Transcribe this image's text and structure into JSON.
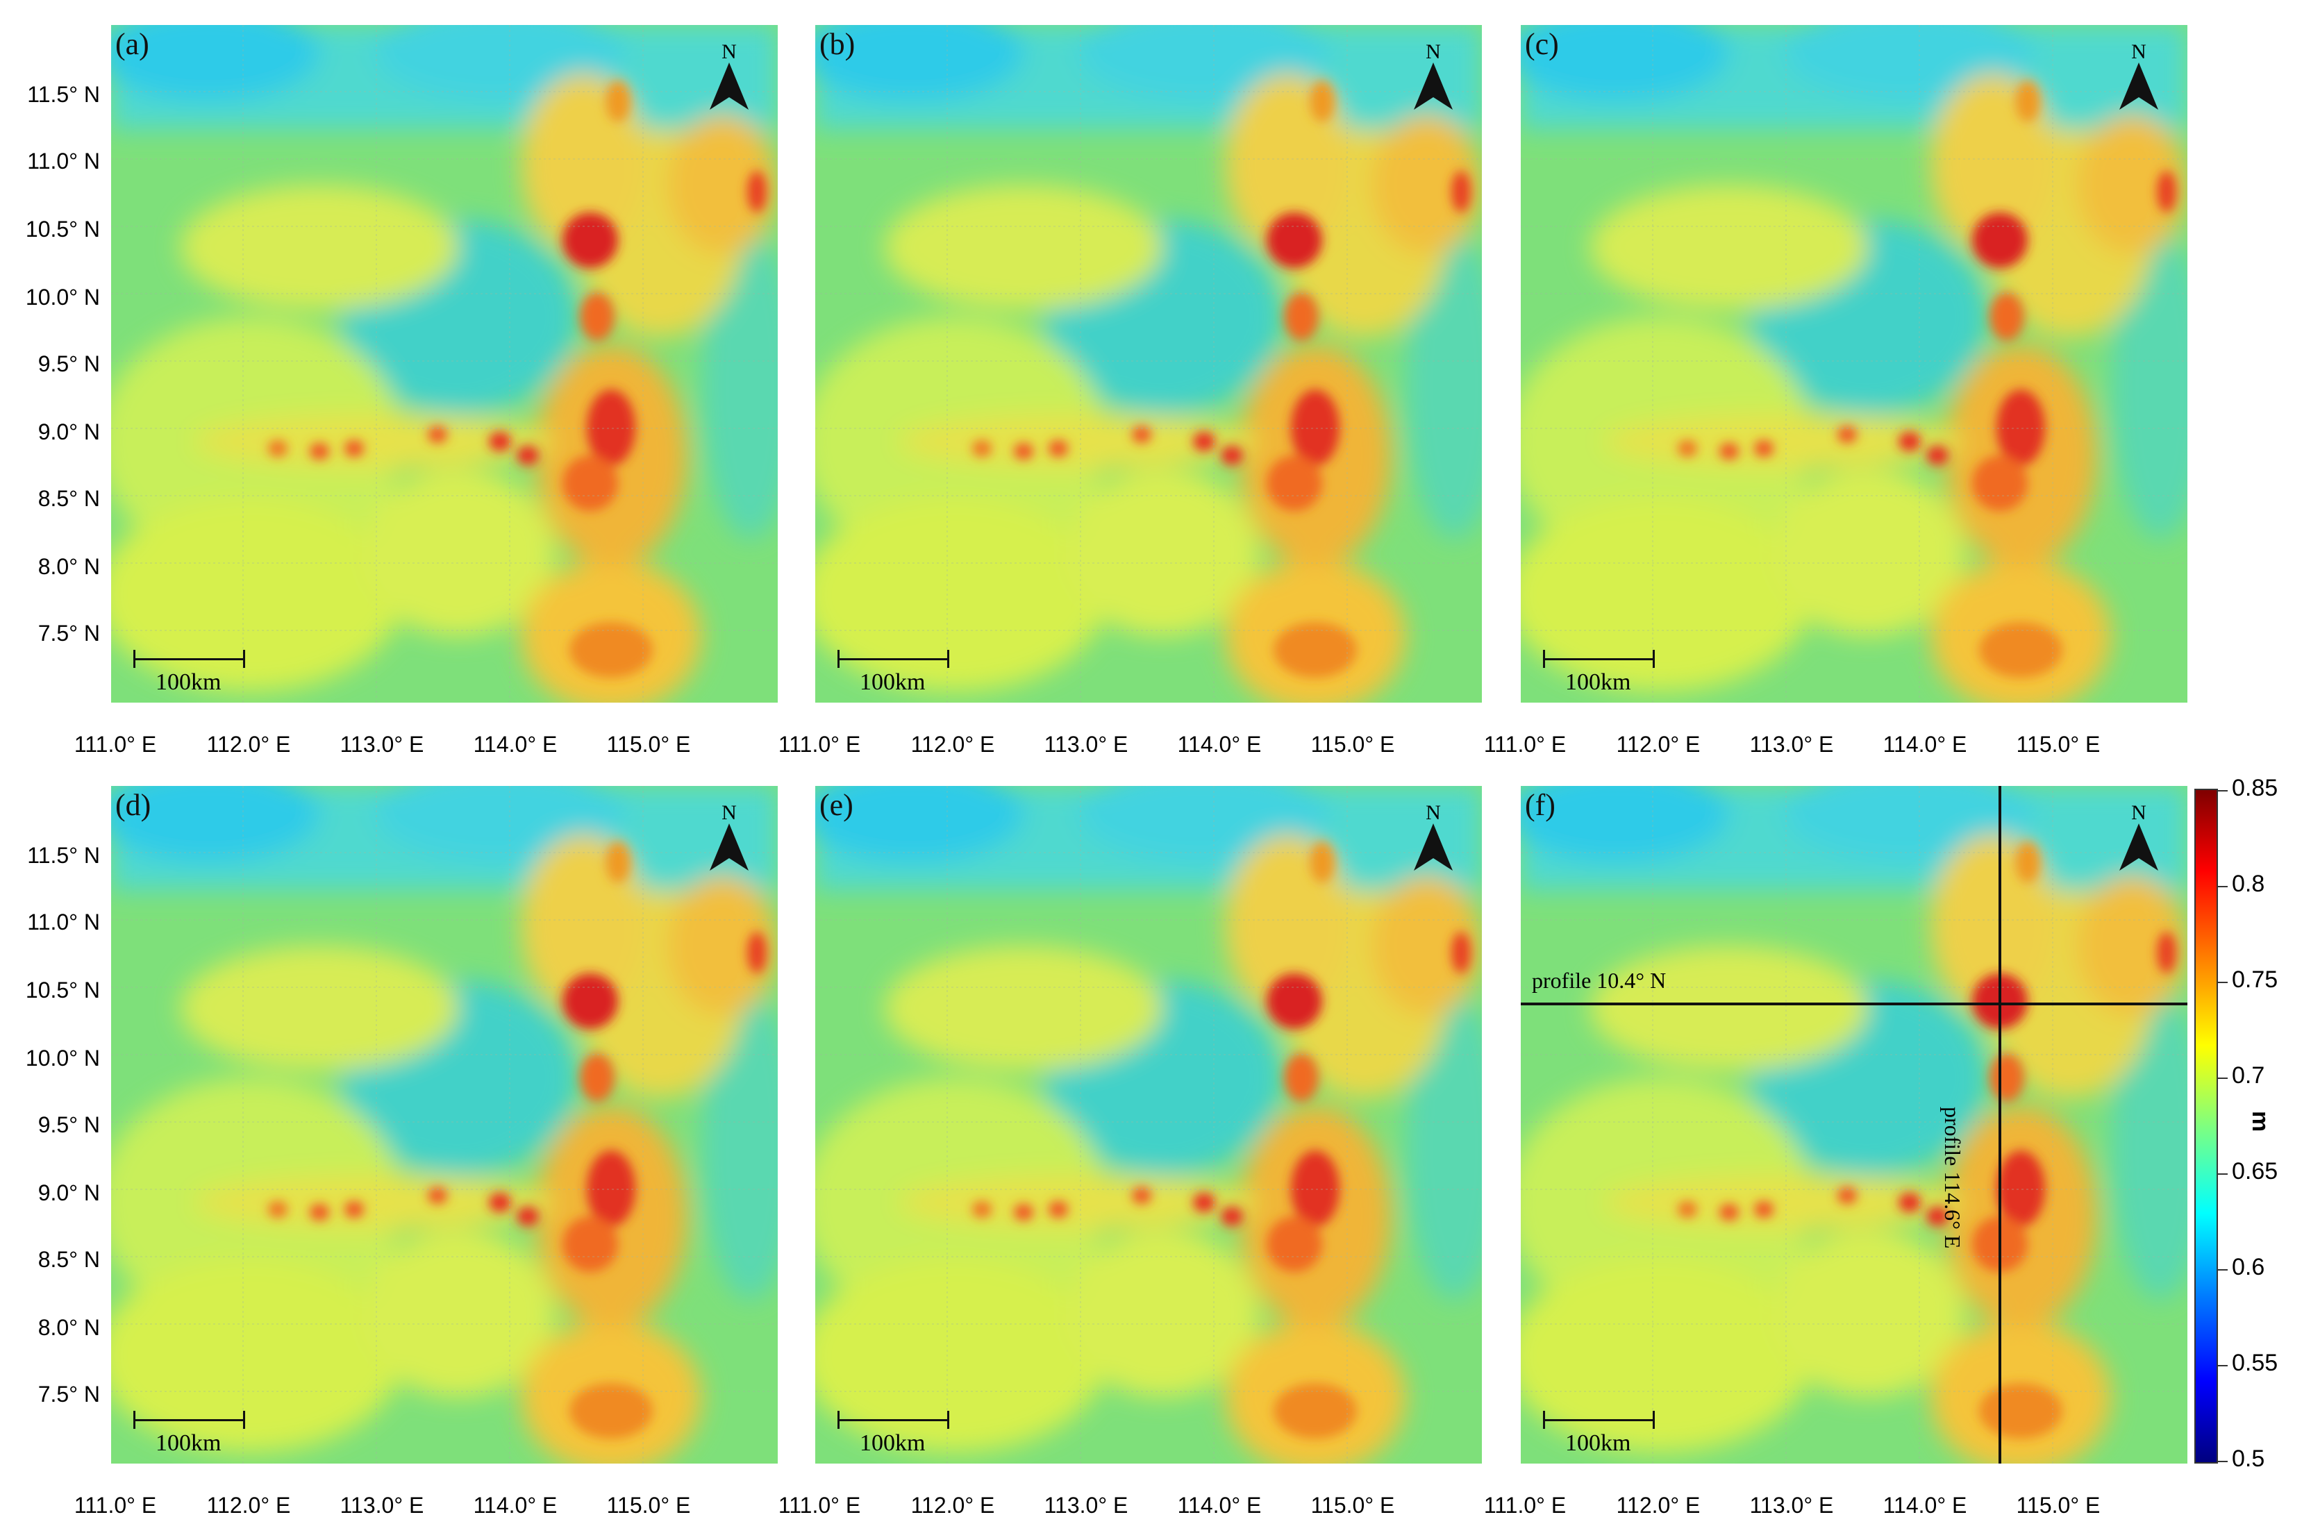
{
  "panels": [
    {
      "letter": "(a)",
      "north": "N",
      "scale": "100km"
    },
    {
      "letter": "(b)",
      "north": "N",
      "scale": "100km"
    },
    {
      "letter": "(c)",
      "north": "N",
      "scale": "100km"
    },
    {
      "letter": "(d)",
      "north": "N",
      "scale": "100km"
    },
    {
      "letter": "(e)",
      "north": "N",
      "scale": "100km"
    },
    {
      "letter": "(f)",
      "north": "N",
      "scale": "100km",
      "profile_h": "profile 10.4° N",
      "profile_v": "profile 114.6° E"
    }
  ],
  "lat_labels": [
    "11.5° N",
    "11.0° N",
    "10.5° N",
    "10.0° N",
    "9.5° N",
    "9.0° N",
    "8.5° N",
    "8.0° N",
    "7.5° N"
  ],
  "lon_labels": [
    "111.0° E",
    "112.0° E",
    "113.0° E",
    "114.0° E",
    "115.0° E"
  ],
  "colorbar": {
    "unit": "m",
    "ticks": [
      "0.85",
      "0.8",
      "0.75",
      "0.7",
      "0.65",
      "0.6",
      "0.55",
      "0.5"
    ],
    "colors": [
      "#7f0000",
      "#ff0000",
      "#ff7f00",
      "#ffff00",
      "#7fff7f",
      "#00ffff",
      "#007fff",
      "#0000ff",
      "#00007f"
    ]
  }
}
